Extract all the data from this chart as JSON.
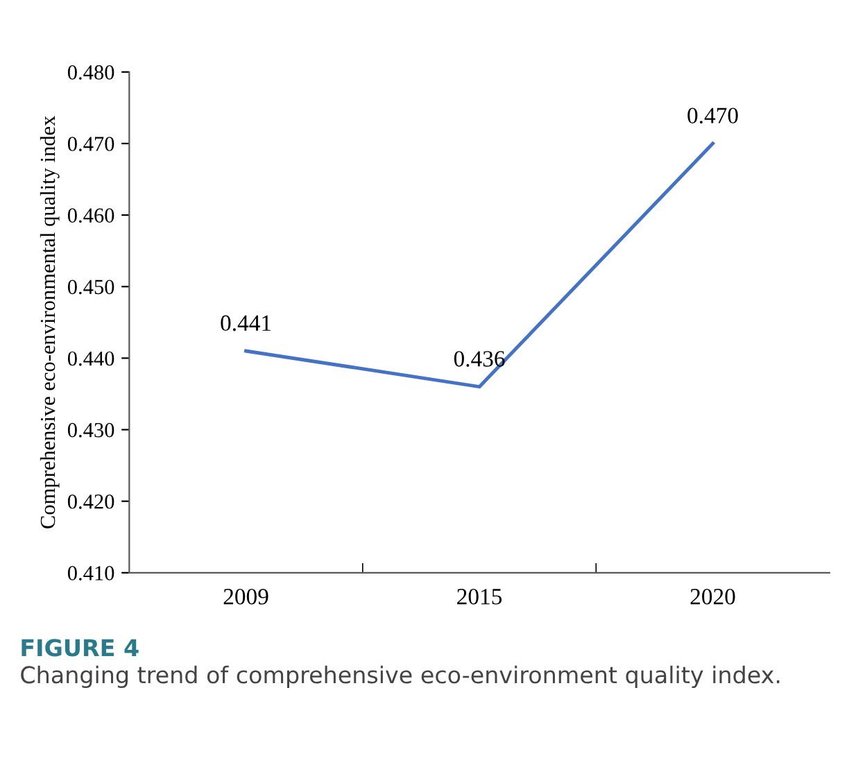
{
  "chart_data": {
    "type": "line",
    "ylabel": "Comprehensive eco-environmental quality index",
    "categories": [
      "2009",
      "2015",
      "2020"
    ],
    "series": [
      {
        "color": "#4472c4",
        "values": [
          0.441,
          0.436,
          0.47
        ],
        "value_labels": [
          "0.441",
          "0.436",
          "0.470"
        ]
      }
    ],
    "ylim": [
      0.41,
      0.48
    ],
    "yticks": [
      {
        "value": 0.41,
        "label": "0.410"
      },
      {
        "value": 0.42,
        "label": "0.420"
      },
      {
        "value": 0.43,
        "label": "0.430"
      },
      {
        "value": 0.44,
        "label": "0.440"
      },
      {
        "value": 0.45,
        "label": "0.450"
      },
      {
        "value": 0.46,
        "label": "0.460"
      },
      {
        "value": 0.47,
        "label": "0.470"
      },
      {
        "value": 0.48,
        "label": "0.480"
      }
    ],
    "grid": false,
    "legend": false,
    "marker": "none",
    "line_style": "solid",
    "annotations": [
      "FIGURE 4",
      "Changing trend of comprehensive eco-environment quality index."
    ]
  }
}
